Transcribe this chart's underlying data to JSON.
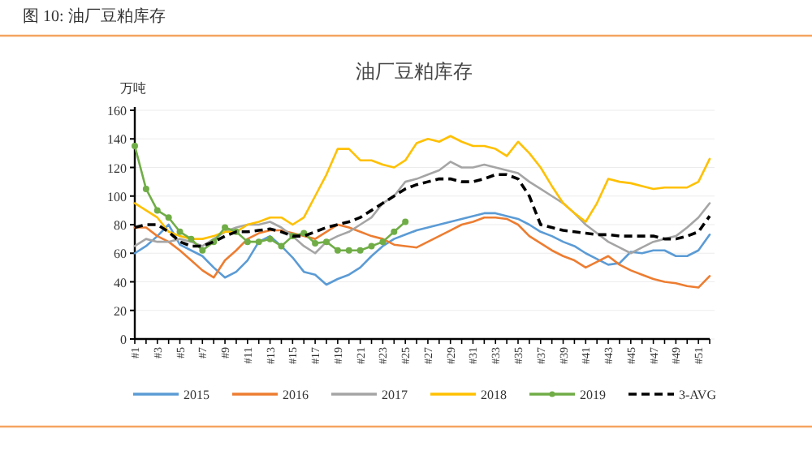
{
  "chart_data": {
    "type": "line",
    "title": "图 10:  油厂豆粕库存",
    "subtitle": "油厂豆粕库存",
    "ylabel": "万吨",
    "categories": [
      "#1",
      null,
      "#3",
      null,
      "#5",
      null,
      "#7",
      null,
      "#9",
      null,
      "#11",
      null,
      "#13",
      null,
      "#15",
      null,
      "#17",
      null,
      "#19",
      null,
      "#21",
      null,
      "#23",
      null,
      "#25",
      null,
      "#27",
      null,
      "#29",
      null,
      "#31",
      null,
      "#33",
      null,
      "#35",
      null,
      "#37",
      null,
      "#39",
      null,
      "#41",
      null,
      "#43",
      null,
      "#45",
      null,
      "#47",
      null,
      "#49",
      null,
      "#51",
      null
    ],
    "ylim": [
      0,
      160
    ],
    "yticks": [
      0,
      20,
      40,
      60,
      80,
      100,
      120,
      140,
      160
    ],
    "grid": "y",
    "legend": "bottom",
    "series": [
      {
        "name": "2015",
        "color": "#5b9bd5",
        "values": [
          60,
          65,
          72,
          80,
          66,
          62,
          58,
          50,
          43,
          47,
          55,
          68,
          72,
          65,
          57,
          47,
          45,
          38,
          42,
          45,
          50,
          58,
          65,
          70,
          73,
          76,
          78,
          80,
          82,
          84,
          86,
          88,
          88,
          86,
          84,
          80,
          75,
          72,
          68,
          65,
          60,
          56,
          52,
          53,
          61,
          60,
          62,
          62,
          58,
          58,
          62,
          73
        ]
      },
      {
        "name": "2016",
        "color": "#ed7d31",
        "values": [
          78,
          78,
          72,
          68,
          62,
          55,
          48,
          43,
          55,
          62,
          70,
          74,
          76,
          76,
          74,
          72,
          70,
          75,
          80,
          78,
          75,
          72,
          70,
          66,
          65,
          64,
          68,
          72,
          76,
          80,
          82,
          85,
          85,
          84,
          80,
          72,
          67,
          62,
          58,
          55,
          50,
          54,
          58,
          52,
          48,
          45,
          42,
          40,
          39,
          37,
          36,
          44
        ]
      },
      {
        "name": "2017",
        "color": "#a5a5a5",
        "values": [
          65,
          70,
          68,
          68,
          70,
          68,
          65,
          70,
          75,
          78,
          80,
          80,
          82,
          78,
          72,
          65,
          60,
          68,
          72,
          75,
          80,
          85,
          95,
          100,
          110,
          112,
          115,
          118,
          124,
          120,
          120,
          122,
          120,
          118,
          116,
          110,
          105,
          100,
          95,
          88,
          80,
          74,
          68,
          64,
          60,
          64,
          68,
          70,
          72,
          78,
          85,
          95
        ]
      },
      {
        "name": "2018",
        "color": "#ffc000",
        "values": [
          95,
          90,
          85,
          75,
          72,
          70,
          70,
          72,
          75,
          75,
          80,
          82,
          85,
          85,
          80,
          85,
          100,
          115,
          133,
          133,
          125,
          125,
          122,
          120,
          125,
          137,
          140,
          138,
          142,
          138,
          135,
          135,
          133,
          128,
          138,
          130,
          120,
          107,
          95,
          88,
          82,
          95,
          112,
          110,
          109,
          107,
          105,
          106,
          106,
          106,
          110,
          126
        ]
      },
      {
        "name": "2019",
        "color": "#70ad47",
        "marker": "circle",
        "values": [
          135,
          105,
          90,
          85,
          75,
          70,
          62,
          68,
          78,
          75,
          68,
          68,
          70,
          65,
          72,
          74,
          67,
          68,
          62,
          62,
          62,
          65,
          68,
          75,
          82,
          null,
          null,
          null,
          null,
          null,
          null,
          null,
          null,
          null,
          null,
          null,
          null,
          null,
          null,
          null,
          null,
          null,
          null,
          null,
          null,
          null,
          null,
          null,
          null,
          null,
          null,
          null
        ]
      },
      {
        "name": "3-AVG",
        "color": "#000000",
        "line_style": "dashed",
        "values": [
          78,
          80,
          80,
          75,
          68,
          65,
          65,
          68,
          72,
          75,
          75,
          76,
          77,
          75,
          72,
          72,
          75,
          78,
          80,
          82,
          85,
          90,
          95,
          100,
          105,
          108,
          110,
          112,
          112,
          110,
          110,
          112,
          115,
          115,
          112,
          100,
          80,
          78,
          76,
          75,
          74,
          73,
          73,
          72,
          72,
          72,
          72,
          70,
          70,
          72,
          75,
          86
        ]
      }
    ]
  }
}
